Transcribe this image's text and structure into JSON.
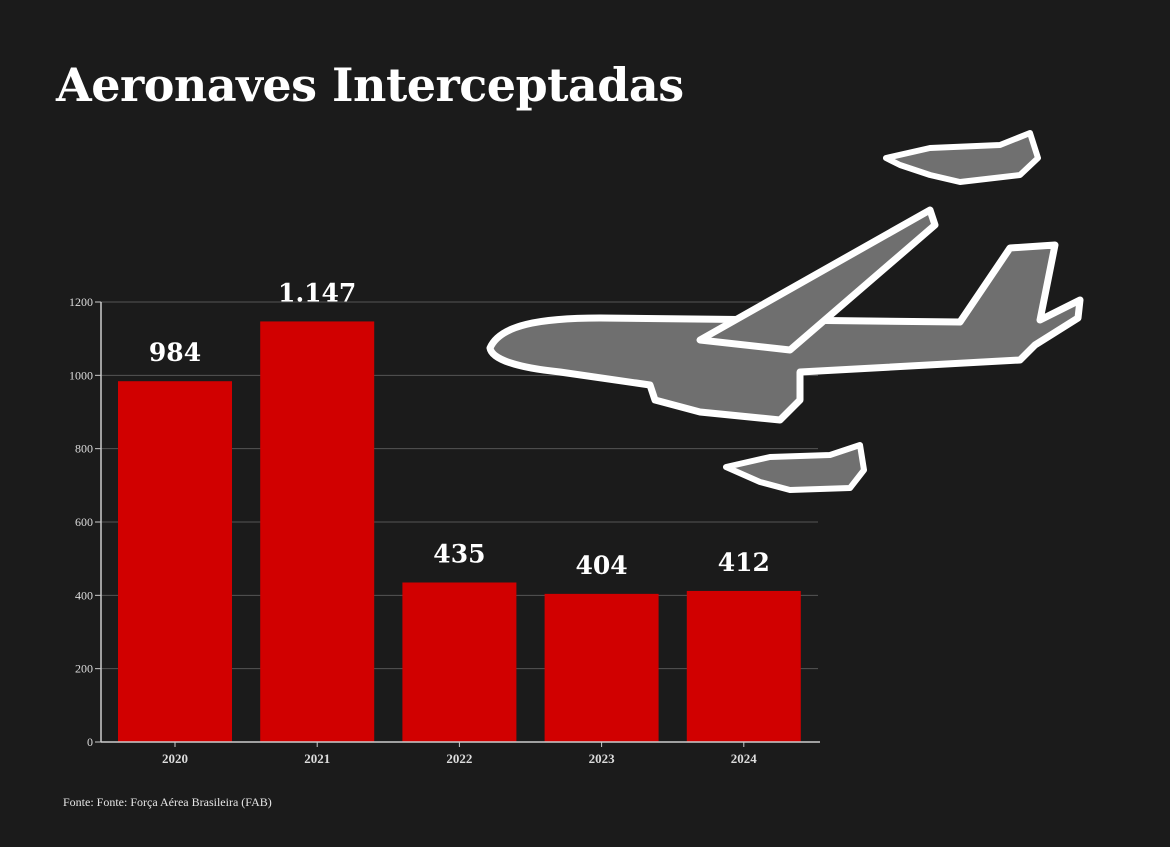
{
  "chart_data": {
    "type": "bar",
    "title": "Aeronaves Interceptadas",
    "categories": [
      "2020",
      "2021",
      "2022",
      "2023",
      "2024"
    ],
    "values": [
      984,
      1147,
      435,
      404,
      412
    ],
    "data_labels": [
      "984",
      "1.147",
      "435",
      "404",
      "412"
    ],
    "xlabel": "",
    "ylabel": "",
    "ylim": [
      0,
      1200
    ],
    "yticks": [
      0,
      200,
      400,
      600,
      800,
      1000,
      1200
    ],
    "grid": true,
    "legend": "none",
    "colors": {
      "bar": "#d10000",
      "background": "#1b1b1b",
      "grid": "#555555",
      "text": "#ffffff"
    }
  },
  "source": "Fonte: Fonte: Força Aérea Brasileira (FAB)",
  "illustration": "airliner-and-fighter-jets"
}
